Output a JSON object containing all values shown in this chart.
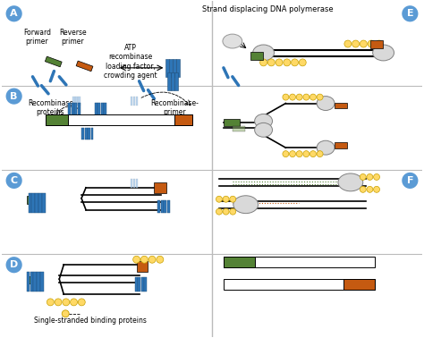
{
  "bg_color": "#f5f5f5",
  "border_color": "#cccccc",
  "blue_circle_color": "#5b9bd5",
  "blue_dark": "#1f4e79",
  "blue_med": "#2e75b6",
  "blue_light": "#9dc3e6",
  "green_color": "#548235",
  "orange_color": "#c55a11",
  "yellow_color": "#ffd966",
  "gray_color": "#808080",
  "gray_light": "#d9d9d9",
  "white": "#ffffff",
  "black": "#000000",
  "labels": {
    "A": "A",
    "B": "B",
    "C": "C",
    "D": "D",
    "E": "E",
    "F": "F"
  },
  "text_items": {
    "forward_primer": "Forward\nprimer",
    "reverse_primer": "Reverse\nprimer",
    "atp_text": "ATP\nrecombinase\nloading factor,\ncrowding agent",
    "recombinase_proteins": "Recombinase\nproteins",
    "recombinase_primer_complex": "Recombinase-\nprimer\ncomplex",
    "strand_displacing": "Strand displacing DNA polymerase",
    "single_stranded": "Single-stranded binding proteins"
  },
  "font_size_label": 8,
  "font_size_text": 5.5
}
